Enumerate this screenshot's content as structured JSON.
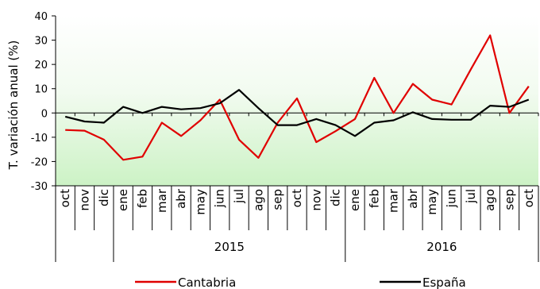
{
  "chart_data": {
    "type": "line",
    "title": "",
    "ylabel": "T. variación anual (%)",
    "xlabel": "",
    "ylim": [
      -30,
      40
    ],
    "yticks": [
      40,
      30,
      20,
      10,
      0,
      -10,
      -20,
      -30
    ],
    "months": [
      "oct",
      "nov",
      "dic",
      "ene",
      "feb",
      "mar",
      "abr",
      "may",
      "jun",
      "jul",
      "ago",
      "sep",
      "oct",
      "nov",
      "dic",
      "ene",
      "feb",
      "mar",
      "abr",
      "may",
      "jun",
      "jul",
      "ago",
      "sep",
      "oct"
    ],
    "years": [
      {
        "label": "2015",
        "start": 3,
        "end": 15
      },
      {
        "label": "2016",
        "start": 15,
        "end": 25
      }
    ],
    "series": [
      {
        "name": "Cantabria",
        "color": "#e00000",
        "values": [
          -7,
          -7.3,
          -11,
          -19.3,
          -18,
          -4,
          -9.5,
          -3,
          5.5,
          -11,
          -18.5,
          -4,
          6,
          -12,
          -7.5,
          -2.5,
          14.5,
          0,
          12,
          5.5,
          3.5,
          18,
          32,
          0,
          11
        ]
      },
      {
        "name": "España",
        "color": "#000000",
        "values": [
          -1.5,
          -3.5,
          -4,
          2.5,
          0,
          2.5,
          1.5,
          2,
          4,
          9.5,
          2,
          -5,
          -5,
          -2.5,
          -5,
          -9.5,
          -4,
          -3,
          0.3,
          -2.5,
          -2.8,
          -2.8,
          3,
          2.5,
          5.5
        ]
      }
    ],
    "legend_position": "bottom",
    "background_fill": "gradient-white-to-green",
    "grid": false
  }
}
